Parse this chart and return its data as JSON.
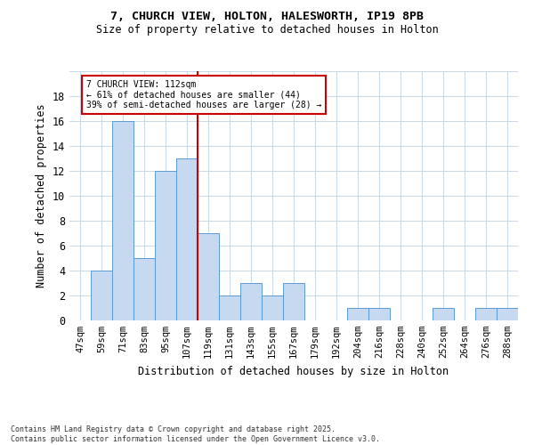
{
  "title_line1": "7, CHURCH VIEW, HOLTON, HALESWORTH, IP19 8PB",
  "title_line2": "Size of property relative to detached houses in Holton",
  "xlabel": "Distribution of detached houses by size in Holton",
  "ylabel": "Number of detached properties",
  "categories": [
    "47sqm",
    "59sqm",
    "71sqm",
    "83sqm",
    "95sqm",
    "107sqm",
    "119sqm",
    "131sqm",
    "143sqm",
    "155sqm",
    "167sqm",
    "179sqm",
    "192sqm",
    "204sqm",
    "216sqm",
    "228sqm",
    "240sqm",
    "252sqm",
    "264sqm",
    "276sqm",
    "288sqm"
  ],
  "values": [
    0,
    4,
    16,
    5,
    12,
    13,
    7,
    2,
    3,
    2,
    3,
    0,
    0,
    1,
    1,
    0,
    0,
    1,
    0,
    1,
    1
  ],
  "bar_color": "#c6d9f0",
  "bar_edge_color": "#5b9bd5",
  "vline_color": "#cc0000",
  "annotation_text": "7 CHURCH VIEW: 112sqm\n← 61% of detached houses are smaller (44)\n39% of semi-detached houses are larger (28) →",
  "annotation_box_color": "#ffffff",
  "annotation_box_edge": "#cc0000",
  "ylim": [
    0,
    20
  ],
  "yticks": [
    0,
    2,
    4,
    6,
    8,
    10,
    12,
    14,
    16,
    18,
    20
  ],
  "footer_text": "Contains HM Land Registry data © Crown copyright and database right 2025.\nContains public sector information licensed under the Open Government Licence v3.0.",
  "background_color": "#ffffff",
  "grid_color": "#c8d8e8"
}
